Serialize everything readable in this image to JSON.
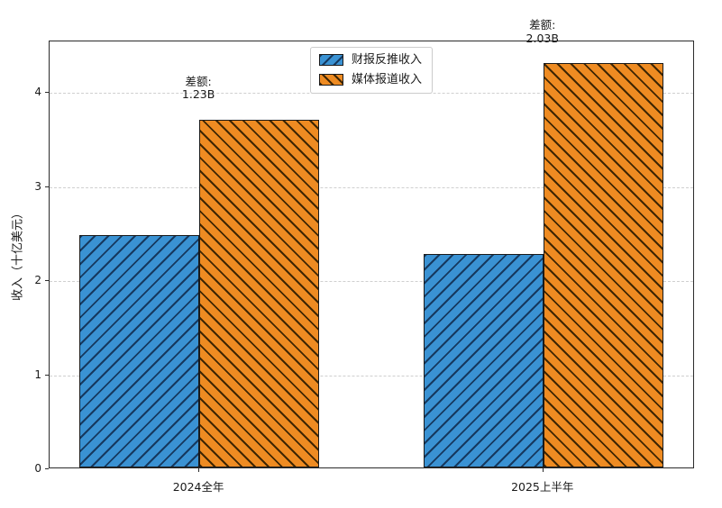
{
  "figure": {
    "background": "#ffffff",
    "text_color": "#1a1a1a",
    "spine_color": "#2b2b2b",
    "grid_color": "#cfcfcf"
  },
  "chart_data": {
    "type": "bar",
    "title": "",
    "xlabel": "",
    "ylabel": "收入（十亿美元）",
    "categories": [
      "2024全年",
      "2025上半年"
    ],
    "series": [
      {
        "name": "财报反推收入",
        "values": [
          2.47,
          2.27
        ],
        "fill": "#3a92d3",
        "hatch": "/",
        "hatch_color": "#16395f"
      },
      {
        "name": "媒体报道收入",
        "values": [
          3.7,
          4.3
        ],
        "fill": "#ee8b22",
        "hatch": "\\",
        "hatch_color": "#3f2603"
      }
    ],
    "annotations": [
      {
        "group": 0,
        "lines": [
          "差额:",
          "1.23B"
        ]
      },
      {
        "group": 1,
        "lines": [
          "差额:",
          "2.03B"
        ]
      }
    ],
    "ylim": [
      0,
      4.55
    ],
    "yticks": [
      0,
      1,
      2,
      3,
      4
    ],
    "grid": "horizontal-dashed",
    "legend_position": "upper center",
    "bar_edge_color": "#1a1a1a"
  }
}
